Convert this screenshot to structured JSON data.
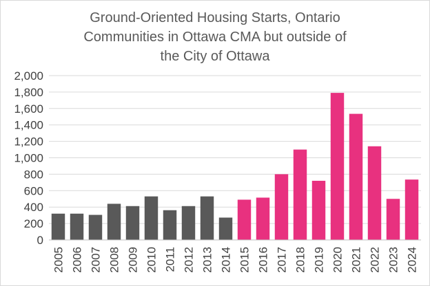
{
  "chart_data": {
    "type": "bar",
    "title_lines": [
      "Ground-Oriented Housing Starts, Ontario",
      "Communities in Ottawa CMA but outside of",
      "the City of Ottawa"
    ],
    "xlabel": "",
    "ylabel": "",
    "categories": [
      "2005",
      "2006",
      "2007",
      "2008",
      "2009",
      "2010",
      "2011",
      "2012",
      "2013",
      "2014",
      "2015",
      "2016",
      "2017",
      "2018",
      "2019",
      "2020",
      "2021",
      "2022",
      "2023",
      "2024"
    ],
    "values": [
      320,
      320,
      305,
      440,
      412,
      530,
      362,
      412,
      530,
      272,
      490,
      515,
      800,
      1100,
      720,
      1790,
      1535,
      1140,
      500,
      735
    ],
    "ylim": [
      0,
      2000
    ],
    "yticks": [
      0,
      200,
      400,
      600,
      800,
      1000,
      1200,
      1400,
      1600,
      1800,
      2000
    ],
    "ytick_labels": [
      "0",
      "200",
      "400",
      "600",
      "800",
      "1,000",
      "1,200",
      "1,400",
      "1,600",
      "1,800",
      "2,000"
    ],
    "grid": true,
    "legend": "none",
    "colors": {
      "before_2015": "#595959",
      "from_2015": "#e8317f",
      "grid": "#d9d9d9",
      "axis": "#bfbfbf"
    },
    "highlight_from_index": 10
  }
}
